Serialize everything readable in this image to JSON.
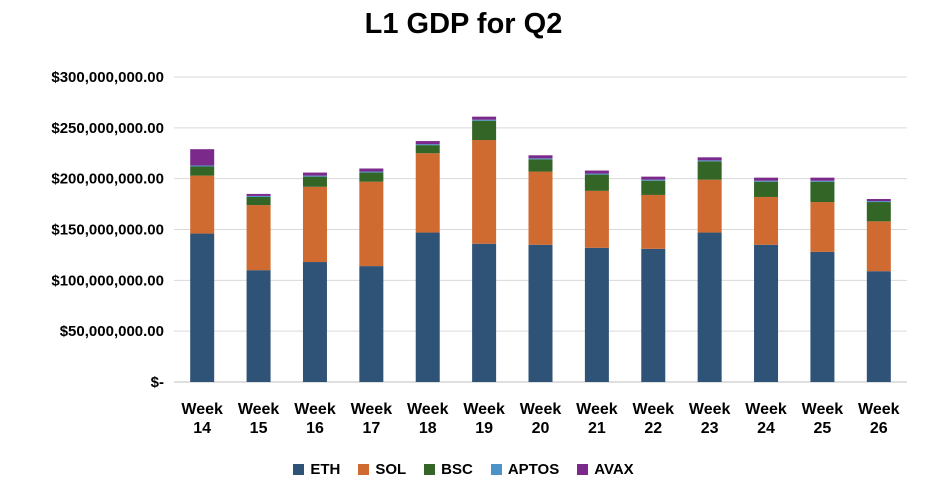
{
  "chart_data": {
    "type": "bar",
    "stacked": true,
    "title": "L1 GDP for Q2",
    "xlabel": "",
    "ylabel": "",
    "ylim": [
      0,
      300000000
    ],
    "yticks": [
      {
        "value": 0,
        "label": "$-"
      },
      {
        "value": 50000000,
        "label": "$50,000,000.00"
      },
      {
        "value": 100000000,
        "label": "$100,000,000.00"
      },
      {
        "value": 150000000,
        "label": "$150,000,000.00"
      },
      {
        "value": 200000000,
        "label": "$200,000,000.00"
      },
      {
        "value": 250000000,
        "label": "$250,000,000.00"
      },
      {
        "value": 300000000,
        "label": "$300,000,000.00"
      }
    ],
    "grid": true,
    "legend_position": "bottom",
    "categories": [
      [
        "Week",
        "14"
      ],
      [
        "Week",
        "15"
      ],
      [
        "Week",
        "16"
      ],
      [
        "Week",
        "17"
      ],
      [
        "Week",
        "18"
      ],
      [
        "Week",
        "19"
      ],
      [
        "Week",
        "20"
      ],
      [
        "Week",
        "21"
      ],
      [
        "Week",
        "22"
      ],
      [
        "Week",
        "23"
      ],
      [
        "Week",
        "24"
      ],
      [
        "Week",
        "25"
      ],
      [
        "Week",
        "26"
      ]
    ],
    "series": [
      {
        "name": "ETH",
        "color": "#2f5277",
        "values": [
          146000000,
          110000000,
          118000000,
          114000000,
          147000000,
          136000000,
          135000000,
          132000000,
          131000000,
          147000000,
          135000000,
          128000000,
          109000000
        ]
      },
      {
        "name": "SOL",
        "color": "#cf6a30",
        "values": [
          57000000,
          64000000,
          74000000,
          83000000,
          78000000,
          102000000,
          72000000,
          56000000,
          53000000,
          52000000,
          47000000,
          49000000,
          49000000
        ]
      },
      {
        "name": "BSC",
        "color": "#336526",
        "values": [
          9000000,
          8000000,
          10000000,
          9000000,
          8000000,
          19000000,
          12000000,
          16000000,
          14000000,
          18000000,
          15000000,
          20000000,
          19000000
        ]
      },
      {
        "name": "APTOS",
        "color": "#4e93c7",
        "values": [
          1000000,
          1000000,
          1000000,
          1000000,
          1000000,
          1000000,
          1000000,
          1000000,
          1000000,
          1000000,
          1000000,
          1000000,
          1000000
        ]
      },
      {
        "name": "AVAX",
        "color": "#7b2a8c",
        "values": [
          16000000,
          2000000,
          3000000,
          3000000,
          3000000,
          3000000,
          3000000,
          3000000,
          3000000,
          3000000,
          3000000,
          3000000,
          2000000
        ]
      }
    ]
  }
}
